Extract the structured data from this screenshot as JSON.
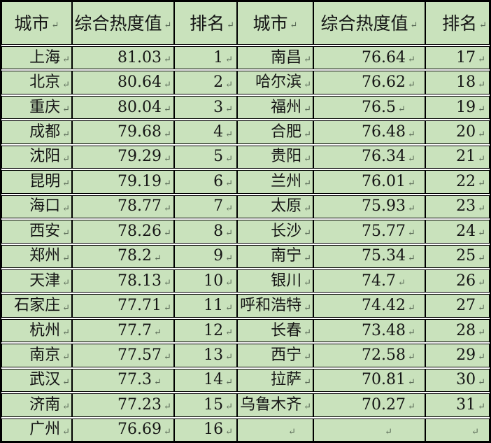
{
  "table": {
    "headers": {
      "city": "城市",
      "score": "综合热度值",
      "rank": "排名"
    },
    "end_of_cell_marker": "↵",
    "colors": {
      "cell_fill": "#c9e2bc",
      "border": "#000000",
      "text": "#151515",
      "marker": "#5b6b58",
      "gap_background": "#ffffff"
    },
    "rows": [
      {
        "left": {
          "city": "上海",
          "score": "81.03",
          "rank": "1"
        },
        "right": {
          "city": "南昌",
          "score": "76.64",
          "rank": "17"
        }
      },
      {
        "left": {
          "city": "北京",
          "score": "80.64",
          "rank": "2"
        },
        "right": {
          "city": "哈尔滨",
          "score": "76.62",
          "rank": "18"
        }
      },
      {
        "left": {
          "city": "重庆",
          "score": "80.04",
          "rank": "3"
        },
        "right": {
          "city": "福州",
          "score": "76.5",
          "rank": "19"
        }
      },
      {
        "left": {
          "city": "成都",
          "score": "79.68",
          "rank": "4"
        },
        "right": {
          "city": "合肥",
          "score": "76.48",
          "rank": "20"
        }
      },
      {
        "left": {
          "city": "沈阳",
          "score": "79.29",
          "rank": "5"
        },
        "right": {
          "city": "贵阳",
          "score": "76.34",
          "rank": "21"
        }
      },
      {
        "left": {
          "city": "昆明",
          "score": "79.19",
          "rank": "6"
        },
        "right": {
          "city": "兰州",
          "score": "76.01",
          "rank": "22"
        }
      },
      {
        "left": {
          "city": "海口",
          "score": "78.77",
          "rank": "7"
        },
        "right": {
          "city": "太原",
          "score": "75.93",
          "rank": "23"
        }
      },
      {
        "left": {
          "city": "西安",
          "score": "78.26",
          "rank": "8"
        },
        "right": {
          "city": "长沙",
          "score": "75.77",
          "rank": "24"
        }
      },
      {
        "left": {
          "city": "郑州",
          "score": "78.2",
          "rank": "9"
        },
        "right": {
          "city": "南宁",
          "score": "75.34",
          "rank": "25"
        }
      },
      {
        "left": {
          "city": "天津",
          "score": "78.13",
          "rank": "10"
        },
        "right": {
          "city": "银川",
          "score": "74.7",
          "rank": "26"
        }
      },
      {
        "left": {
          "city": "石家庄",
          "score": "77.71",
          "rank": "11"
        },
        "right": {
          "city": "呼和浩特",
          "score": "74.42",
          "rank": "27"
        }
      },
      {
        "left": {
          "city": "杭州",
          "score": "77.7",
          "rank": "12"
        },
        "right": {
          "city": "长春",
          "score": "73.48",
          "rank": "28"
        }
      },
      {
        "left": {
          "city": "南京",
          "score": "77.57",
          "rank": "13"
        },
        "right": {
          "city": "西宁",
          "score": "72.58",
          "rank": "29"
        }
      },
      {
        "left": {
          "city": "武汉",
          "score": "77.3",
          "rank": "14"
        },
        "right": {
          "city": "拉萨",
          "score": "70.81",
          "rank": "30"
        }
      },
      {
        "left": {
          "city": "济南",
          "score": "77.23",
          "rank": "15"
        },
        "right": {
          "city": "乌鲁木齐",
          "score": "70.27",
          "rank": "31"
        }
      },
      {
        "left": {
          "city": "广州",
          "score": "76.69",
          "rank": "16"
        },
        "right": {
          "city": "",
          "score": "",
          "rank": ""
        }
      }
    ]
  }
}
